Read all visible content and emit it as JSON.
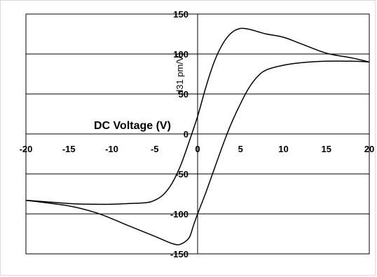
{
  "chart_data": {
    "type": "line",
    "xlabel": "DC Voltage (V)",
    "ylabel": "d31 pm/V)",
    "xlim": [
      -20,
      20
    ],
    "ylim": [
      -150,
      150
    ],
    "x_ticks": [
      "-20",
      "-15",
      "-10",
      "-5",
      "0",
      "5",
      "10",
      "15",
      "20"
    ],
    "y_ticks": [
      "150",
      "100",
      "50",
      "0",
      "-50",
      "-100",
      "-150"
    ],
    "grid": "horizontal",
    "series": [
      {
        "x": [
          -20,
          -15,
          -12,
          -10,
          -8,
          -6,
          -5,
          -4,
          -3,
          -2,
          -1,
          0,
          1,
          2,
          3,
          4,
          5,
          6,
          7,
          8,
          10,
          12,
          15,
          18,
          20
        ],
        "y": [
          -83,
          -87,
          -88,
          -88,
          -87,
          -86,
          -83,
          -76,
          -62,
          -40,
          -10,
          22,
          60,
          92,
          114,
          127,
          132,
          131,
          128,
          125,
          121,
          113,
          101,
          95,
          90
        ]
      },
      {
        "x": [
          20,
          18,
          15,
          12,
          10,
          8,
          7,
          6,
          5,
          4,
          3,
          2,
          1,
          0,
          -0.5,
          -1,
          -2,
          -3,
          -5,
          -8,
          -10,
          -12,
          -15,
          -20
        ],
        "y": [
          90,
          91,
          91,
          89,
          86,
          80,
          72,
          58,
          38,
          15,
          -12,
          -42,
          -72,
          -100,
          -115,
          -130,
          -138,
          -137,
          -128,
          -115,
          -106,
          -98,
          -90,
          -83
        ]
      }
    ]
  }
}
